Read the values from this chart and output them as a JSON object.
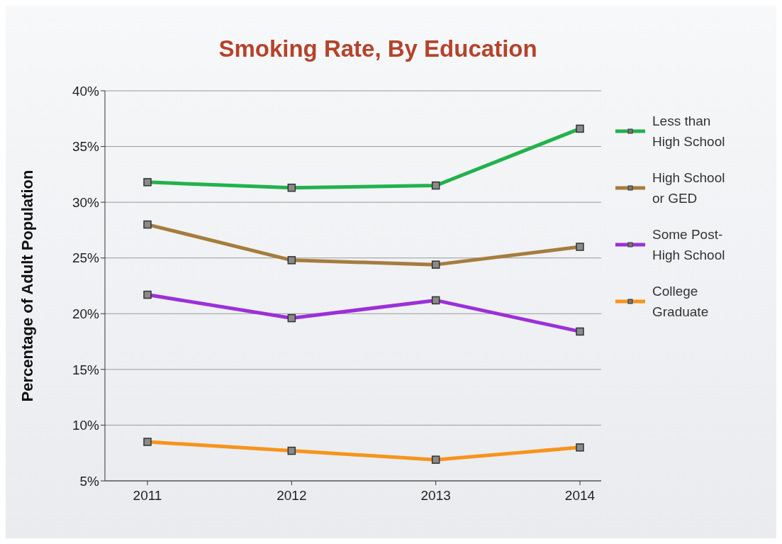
{
  "chart_data": {
    "type": "line",
    "title": "Smoking Rate, By Education",
    "ylabel": "Percentage of Adult Population",
    "categories": [
      "2011",
      "2012",
      "2013",
      "2014"
    ],
    "series": [
      {
        "name": "Less than High School",
        "color": "#22b24c",
        "values": [
          31.8,
          31.3,
          31.5,
          36.6
        ]
      },
      {
        "name": "High School or GED",
        "color": "#a67c3d",
        "values": [
          28.0,
          24.8,
          24.4,
          26.0
        ]
      },
      {
        "name": "Some Post-High School",
        "color": "#9b30d9",
        "values": [
          21.7,
          19.6,
          21.2,
          18.4
        ]
      },
      {
        "name": "College Graduate",
        "color": "#f7941d",
        "values": [
          8.5,
          7.7,
          6.9,
          8.0
        ]
      }
    ],
    "ylim": [
      5,
      40
    ],
    "yticks": [
      {
        "value": 5,
        "label": "5%"
      },
      {
        "value": 10,
        "label": "10%"
      },
      {
        "value": 15,
        "label": "15%"
      },
      {
        "value": 20,
        "label": "20%"
      },
      {
        "value": 25,
        "label": "25%"
      },
      {
        "value": 30,
        "label": "30%"
      },
      {
        "value": 35,
        "label": "35%"
      },
      {
        "value": 40,
        "label": "40%"
      }
    ],
    "grid": "y",
    "legend": "right",
    "marker": "square",
    "line_style": "solid"
  }
}
